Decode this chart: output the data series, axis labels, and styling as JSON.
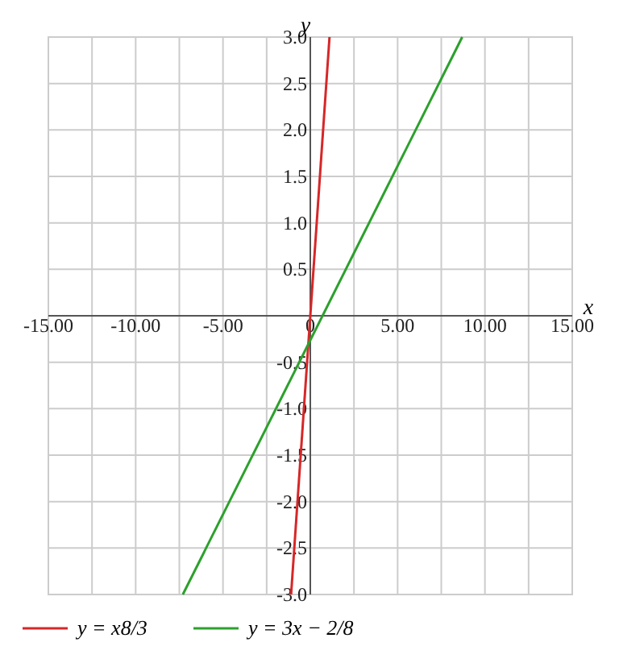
{
  "chart_data": {
    "type": "line",
    "xlabel": "x",
    "ylabel": "y",
    "xlim": [
      -15,
      15
    ],
    "ylim": [
      -3,
      3
    ],
    "xticks": [
      {
        "value": -15,
        "label": "-15.00"
      },
      {
        "value": -12.5,
        "label": null
      },
      {
        "value": -10,
        "label": "-10.00"
      },
      {
        "value": -7.5,
        "label": null
      },
      {
        "value": -5,
        "label": "-5.00"
      },
      {
        "value": -2.5,
        "label": null
      },
      0,
      {
        "value": 2.5,
        "label": null
      },
      {
        "value": 5,
        "label": "5.00"
      },
      {
        "value": 7.5,
        "label": null
      },
      {
        "value": 10,
        "label": "10.00"
      },
      {
        "value": 12.5,
        "label": null
      },
      {
        "value": 15,
        "label": "15.00"
      }
    ],
    "yticks": [
      {
        "value": -3,
        "label": "-3.0"
      },
      -2.5,
      {
        "value": -2,
        "label": "-2.0"
      },
      -1.5,
      {
        "value": -1,
        "label": "-1.0"
      },
      -0.5,
      0.5,
      {
        "value": 1,
        "label": "1.0"
      },
      1.5,
      {
        "value": 2,
        "label": "2.0"
      },
      2.5,
      {
        "value": 3,
        "label": "3.0"
      }
    ],
    "series": [
      {
        "name": "y = x8/3",
        "color": "#d62728",
        "x": [
          -1.1,
          1.1
        ],
        "values": [
          -3,
          3
        ]
      },
      {
        "name": "y = 3x − 2/8",
        "color": "#2ca02c",
        "x": [
          -7.3,
          8.7
        ],
        "values": [
          -3,
          3
        ]
      }
    ],
    "grid": true,
    "legend": "bottom left",
    "line_style": "solid"
  }
}
